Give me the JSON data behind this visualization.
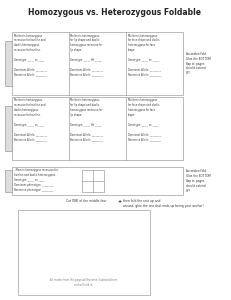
{
  "title": "Homozygous vs. Heterozygous Foldable",
  "bg_color": "#ffffff",
  "title_fontsize": 5.5,
  "panel_text_row1": [
    "Mother is homozygous\nrecessive for hairline and\ndad is heterozygous\nrecessive for hairline.\n\nGenotype: _____ vs _____\n\nDominant Allele: _________\nRecessive Allele: _________",
    "Mother is heterozygous\nfor lip shape and dad is\nhomozygous recessive for\nlip shape.\n\nGenotype: _____ Hh _____\n\nDominant Allele: _________\nRecessive Allele: _________",
    "Mother is heterozygous\nfor face shape and dad is\nheterozygous for face\nshape.\n\nGenotype: _____ vs _____\n\nDominant Allele: _________\nRecessive Allele: _________"
  ],
  "panel_text_row2": [
    "Mother is homozygous\nrecessive for hairline and\ndad is homozygous\nrecessive for hairline.\n\nGenotype: _____ vs _____\n\nDominant Allele: _________\nRecessive Allele: _________",
    "Mother is heterozygous\nfor lip shape and dad is\nhomozygous recessive for\nlip shape.\n\nGenotype: _____ Hh _____\n\nDominant Allele: _________\nRecessive Allele: _________",
    "Mother is heterozygous\nfor face shape and dad is\nheterozygous for face\nshape.\n\nGenotype: _____ vs _____\n\nDominant Allele: _________\nRecessive Allele: _________"
  ],
  "accordion_text1": "Accordion Fold.\nGlue the BOTTOM\nflap in, pages\nshould extend\nUP!",
  "accordion_text2": "Accordion Fold.\nGlue the BOTTOM\nflap in, pages\nshould extend\nUP!",
  "punnett_text": "- Mom is homozygous recessive for\nhairline and dad is heterozygous.\nGenotype: _____ vs _____\nDominant phenotype: _________\nRecessive phenotype: _________",
  "cut_instruction": "Cut ONE of the middle four",
  "cut_instruction2": "then fold the rest up and\naround, glue the one that ends up being your anchor!",
  "bottom_note": "All matter from this page will become illustrated here\nand will fold in.",
  "edge_color": "#888888",
  "tab_color": "#dddddd"
}
